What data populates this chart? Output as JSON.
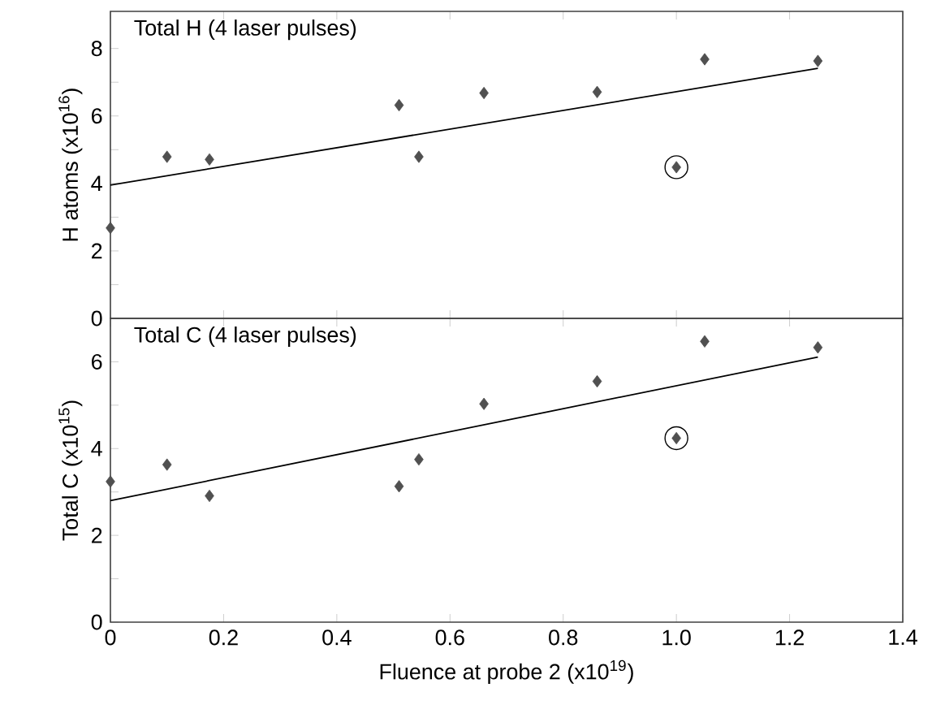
{
  "chart_data": [
    {
      "type": "scatter",
      "title": "Total H (4 laser pulses)",
      "ylabel": "H atoms (x10$^{16}$)",
      "xlim": [
        0,
        1.4
      ],
      "ylim": [
        0,
        9.1
      ],
      "tick_labels": "y",
      "xticks": [
        0,
        0.2,
        0.4,
        0.6,
        0.8,
        1,
        1.2,
        1.4
      ],
      "yticks": [
        0,
        {
          "value": 1,
          "label": null
        },
        2,
        {
          "value": 3,
          "label": null
        },
        4,
        {
          "value": 5,
          "label": null
        },
        6,
        {
          "value": 7,
          "label": null
        },
        8
      ],
      "series": [
        {
          "marker": "diamond",
          "color": "#505050",
          "x": [
            0,
            0.1,
            0.175,
            0.51,
            0.545,
            0.66,
            0.86,
            1.0,
            1.05,
            1.25
          ],
          "values": [
            2.68,
            4.79,
            4.71,
            6.32,
            4.79,
            6.68,
            6.71,
            4.48,
            7.68,
            7.63
          ]
        },
        {
          "type": "line",
          "marker": "none",
          "color": "#000000",
          "x": [
            0,
            1.25
          ],
          "values": [
            3.95,
            7.41
          ]
        },
        {
          "marker": "circle",
          "color": "#000000",
          "x": [
            1.0
          ],
          "values": [
            4.48
          ]
        }
      ]
    },
    {
      "type": "scatter",
      "title": "Total C (4 laser pulses)",
      "xlabel": "Fluence at probe 2 (x10$^{19}$)",
      "ylabel": "Total C (x10$^{15}$)",
      "xlim": [
        0,
        1.4
      ],
      "ylim": [
        0,
        7
      ],
      "xticks": [
        0,
        0.2,
        0.4,
        0.6,
        0.8,
        {
          "value": 1,
          "label": "1.0"
        },
        1.2,
        1.4
      ],
      "yticks": [
        0,
        {
          "value": 1,
          "label": null
        },
        2,
        {
          "value": 3,
          "label": null
        },
        4,
        {
          "value": 5,
          "label": null
        },
        6
      ],
      "series": [
        {
          "marker": "diamond",
          "color": "#505050",
          "x": [
            0,
            0.1,
            0.175,
            0.51,
            0.545,
            0.66,
            0.86,
            1.0,
            1.05,
            1.25
          ],
          "values": [
            3.24,
            3.63,
            2.91,
            3.13,
            3.75,
            5.03,
            5.55,
            4.24,
            6.47,
            6.33
          ]
        },
        {
          "type": "line",
          "marker": "none",
          "color": "#000000",
          "x": [
            0,
            1.25
          ],
          "values": [
            2.8,
            6.11
          ]
        },
        {
          "marker": "circle",
          "color": "#000000",
          "x": [
            1.0
          ],
          "values": [
            4.24
          ]
        }
      ]
    }
  ]
}
